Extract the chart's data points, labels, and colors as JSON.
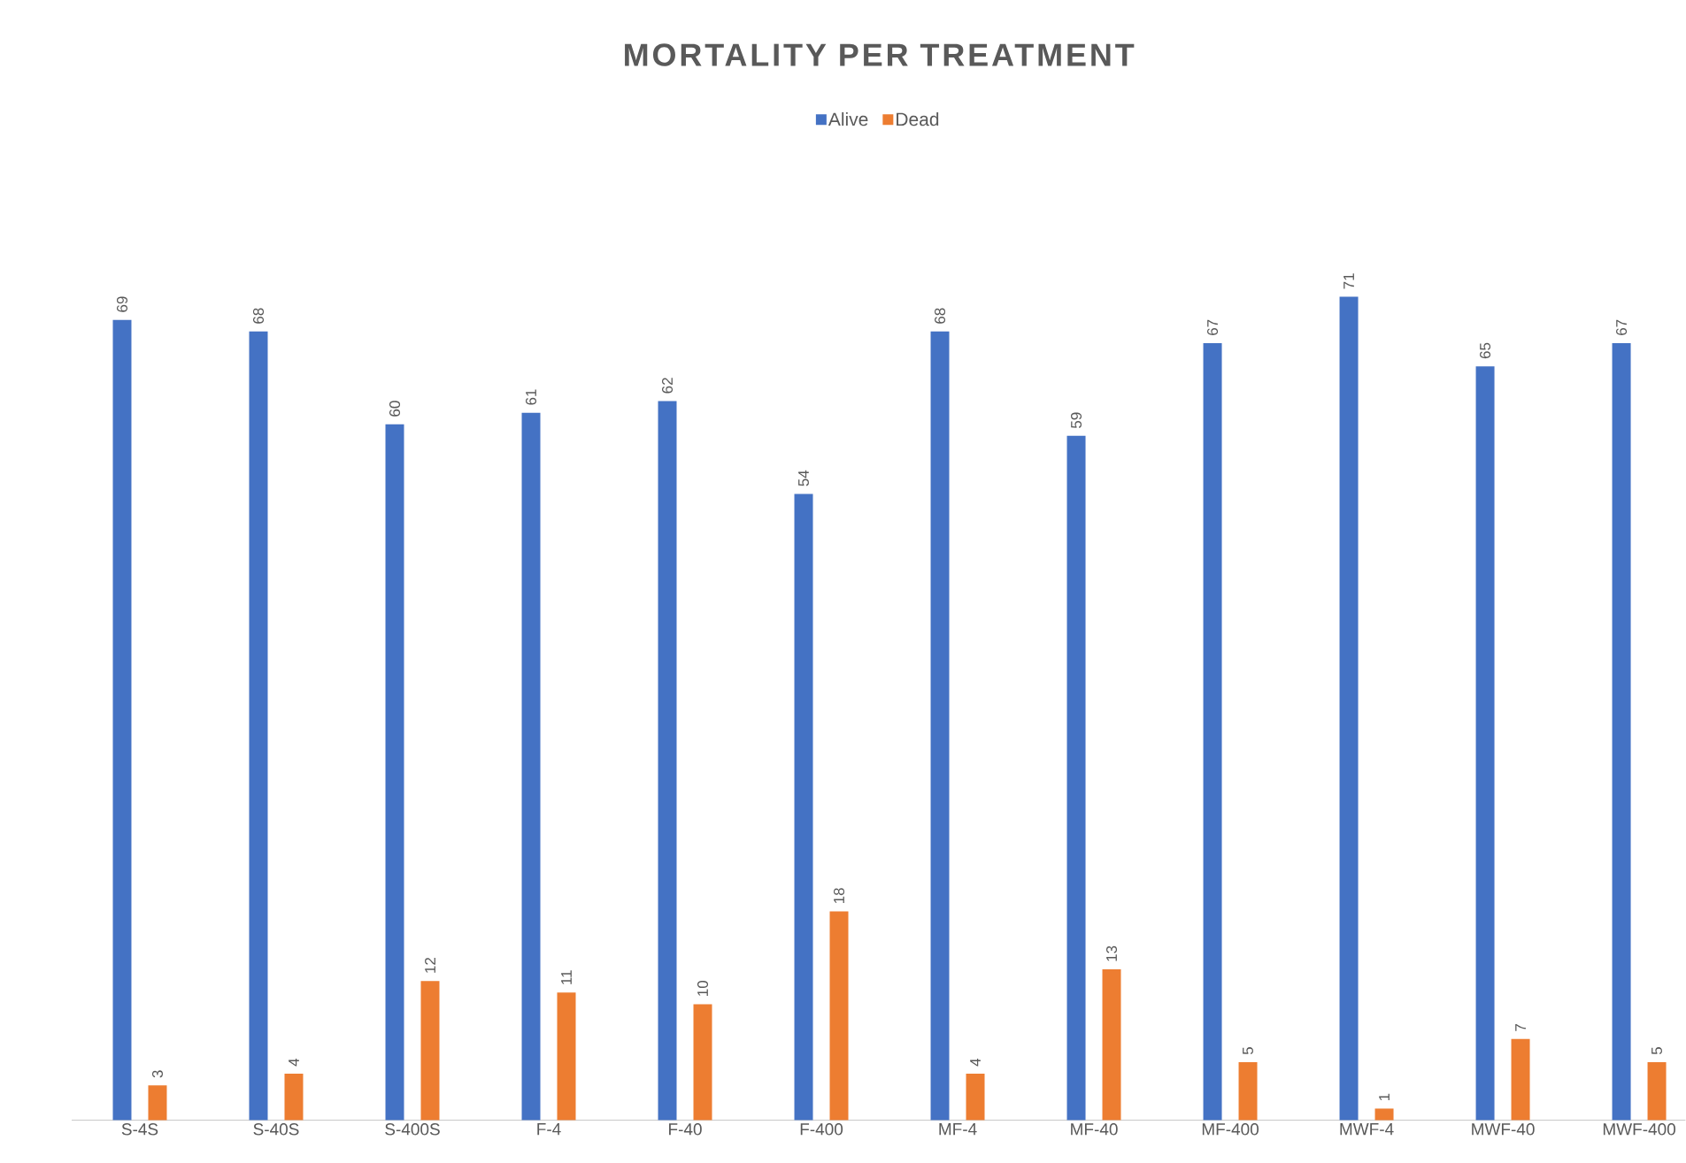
{
  "chart_data": {
    "type": "bar",
    "title": "MORTALITY PER TREATMENT",
    "categories": [
      "S-4S",
      "S-40S",
      "S-400S",
      "F-4",
      "F-40",
      "F-400",
      "MF-4",
      "MF-40",
      "MF-400",
      "MWF-4",
      "MWF-40",
      "MWF-400"
    ],
    "series": [
      {
        "name": "Alive",
        "color": "#4472c4",
        "values": [
          69,
          68,
          60,
          61,
          62,
          54,
          68,
          59,
          67,
          71,
          65,
          67
        ]
      },
      {
        "name": "Dead",
        "color": "#ed7d31",
        "values": [
          3,
          4,
          12,
          11,
          10,
          18,
          4,
          13,
          5,
          1,
          7,
          5
        ]
      }
    ],
    "data_labels": true,
    "legend": "top"
  }
}
